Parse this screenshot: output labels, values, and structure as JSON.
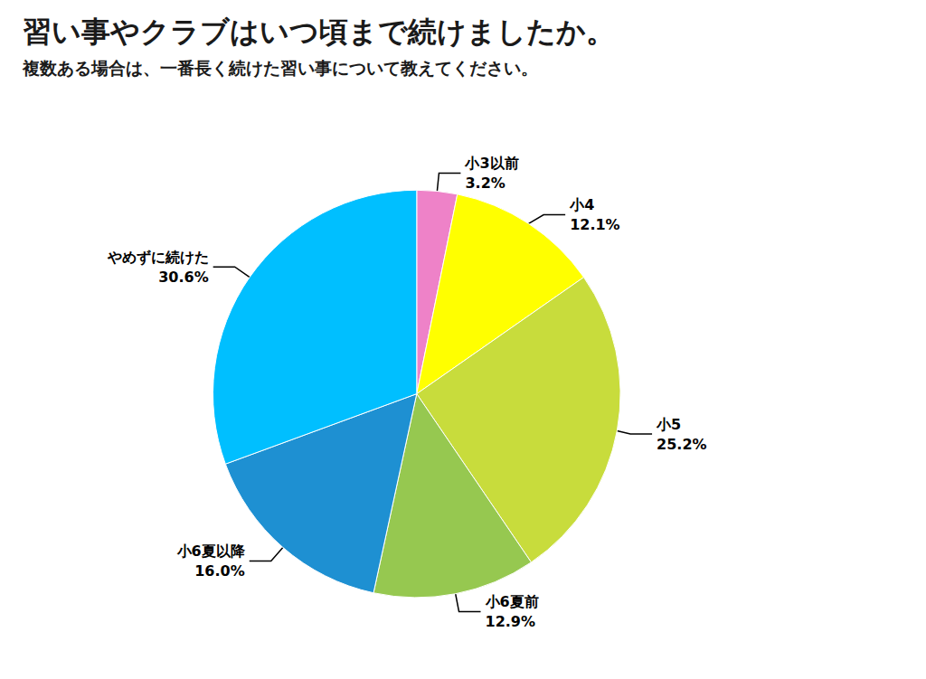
{
  "chart_data": {
    "type": "pie",
    "title": "習い事やクラブはいつ頃まで続けましたか。",
    "subtitle": "複数ある場合は、一番長く続けた習い事について教えてください。",
    "categories": [
      "小3以前",
      "小4",
      "小5",
      "小6夏前",
      "小6夏以降",
      "やめずに続けた"
    ],
    "values": [
      3.2,
      12.1,
      25.2,
      12.9,
      16.0,
      30.6
    ],
    "value_labels": [
      "3.2%",
      "12.1%",
      "25.2%",
      "12.9%",
      "16.0%",
      "30.6%"
    ],
    "colors": [
      "#ee82c8",
      "#ffff00",
      "#c8dc3c",
      "#96c850",
      "#1e90d2",
      "#00bfff"
    ],
    "data_labels": true
  }
}
